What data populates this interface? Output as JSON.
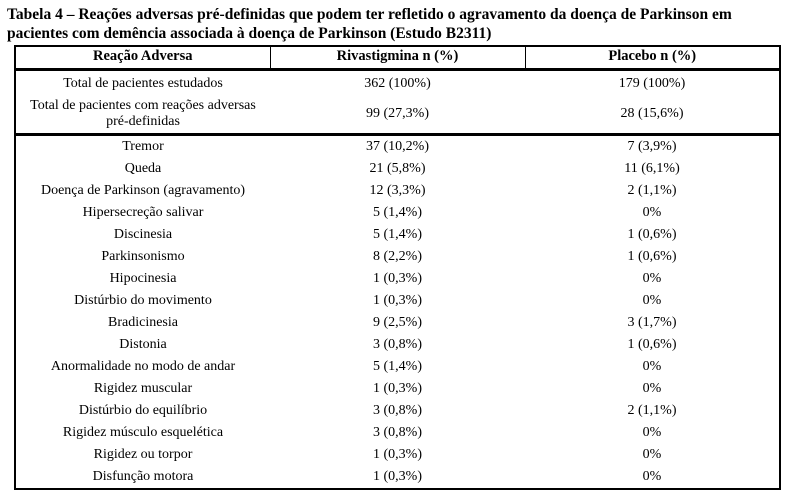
{
  "title": {
    "line1": "Tabela 4 – Reações adversas pré-definidas que podem ter refletido o agravamento da doença de Parkinson em",
    "line2": "pacientes com demência associada à doença de Parkinson (Estudo B2311)"
  },
  "table": {
    "columns": [
      "Reação Adversa",
      "Rivastigmina n (%)",
      "Placebo n (%)"
    ],
    "summary_rows": [
      {
        "label": "Total de pacientes estudados",
        "rivastigmina": "362 (100%)",
        "placebo": "179 (100%)"
      },
      {
        "label": "Total de pacientes com reações adversas pré-definidas",
        "rivastigmina": "99 (27,3%)",
        "placebo": "28 (15,6%)"
      }
    ],
    "rows": [
      {
        "label": "Tremor",
        "rivastigmina": "37 (10,2%)",
        "placebo": "7 (3,9%)"
      },
      {
        "label": "Queda",
        "rivastigmina": "21 (5,8%)",
        "placebo": "11 (6,1%)"
      },
      {
        "label": "Doença de Parkinson (agravamento)",
        "rivastigmina": "12 (3,3%)",
        "placebo": "2 (1,1%)"
      },
      {
        "label": "Hipersecreção salivar",
        "rivastigmina": "5 (1,4%)",
        "placebo": "0%"
      },
      {
        "label": "Discinesia",
        "rivastigmina": "5 (1,4%)",
        "placebo": "1 (0,6%)"
      },
      {
        "label": "Parkinsonismo",
        "rivastigmina": "8 (2,2%)",
        "placebo": "1 (0,6%)"
      },
      {
        "label": "Hipocinesia",
        "rivastigmina": "1 (0,3%)",
        "placebo": "0%"
      },
      {
        "label": "Distúrbio do movimento",
        "rivastigmina": "1 (0,3%)",
        "placebo": "0%"
      },
      {
        "label": "Bradicinesia",
        "rivastigmina": "9 (2,5%)",
        "placebo": "3 (1,7%)"
      },
      {
        "label": "Distonia",
        "rivastigmina": "3 (0,8%)",
        "placebo": "1 (0,6%)"
      },
      {
        "label": "Anormalidade no modo de andar",
        "rivastigmina": "5 (1,4%)",
        "placebo": "0%"
      },
      {
        "label": "Rigidez muscular",
        "rivastigmina": "1 (0,3%)",
        "placebo": "0%"
      },
      {
        "label": "Distúrbio do equilíbrio",
        "rivastigmina": "3 (0,8%)",
        "placebo": "2 (1,1%)"
      },
      {
        "label": "Rigidez músculo esquelética",
        "rivastigmina": "3 (0,8%)",
        "placebo": "0%"
      },
      {
        "label": "Rigidez ou torpor",
        "rivastigmina": "1 (0,3%)",
        "placebo": "0%"
      },
      {
        "label": "Disfunção motora",
        "rivastigmina": "1 (0,3%)",
        "placebo": "0%"
      }
    ]
  }
}
